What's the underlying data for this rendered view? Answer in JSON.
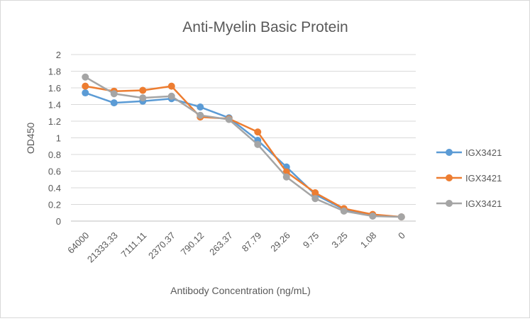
{
  "chart_data": {
    "type": "line",
    "title": "Anti-Myelin Basic Protein",
    "xlabel": "Antibody Concentration (ng/mL)",
    "ylabel": "OD450",
    "categories": [
      "64000",
      "21333.33",
      "7111.11",
      "2370.37",
      "790.12",
      "263.37",
      "87.79",
      "29.26",
      "9.75",
      "3.25",
      "1.08",
      "0"
    ],
    "ylim": [
      0,
      2
    ],
    "yticks": [
      "0",
      "0.2",
      "0.4",
      "0.6",
      "0.8",
      "1",
      "1.2",
      "1.4",
      "1.6",
      "1.8",
      "2"
    ],
    "grid": true,
    "legend_position": "right",
    "series": [
      {
        "name": "IGX3421",
        "color": "#5b9bd5",
        "values": [
          1.54,
          1.42,
          1.44,
          1.47,
          1.37,
          1.24,
          0.97,
          0.65,
          0.32,
          0.14,
          0.07,
          0.05
        ]
      },
      {
        "name": "IGX3421",
        "color": "#ed7d31",
        "values": [
          1.62,
          1.56,
          1.57,
          1.62,
          1.25,
          1.23,
          1.07,
          0.59,
          0.34,
          0.15,
          0.08,
          0.05
        ]
      },
      {
        "name": "IGX3421",
        "color": "#a5a5a5",
        "values": [
          1.73,
          1.53,
          1.48,
          1.5,
          1.27,
          1.22,
          0.92,
          0.53,
          0.27,
          0.12,
          0.06,
          0.05
        ]
      }
    ]
  }
}
